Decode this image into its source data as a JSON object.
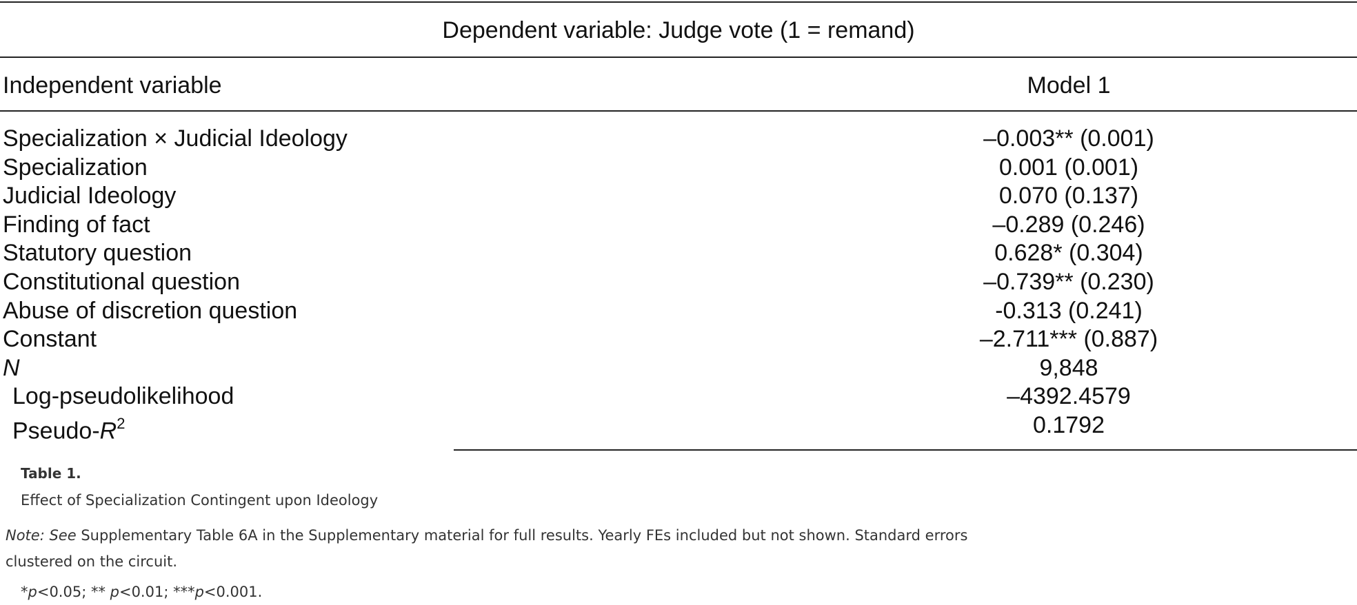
{
  "table": {
    "dependent_variable": "Dependent variable: Judge vote (1 = remand)",
    "header": {
      "left": "Independent variable",
      "right": "Model 1"
    },
    "rows": [
      {
        "variable": "Specialization × Judicial Ideology",
        "value": "–0.003** (0.001)"
      },
      {
        "variable": "Specialization",
        "value": "0.001 (0.001)"
      },
      {
        "variable": "Judicial Ideology",
        "value": "0.070 (0.137)"
      },
      {
        "variable": "Finding of fact",
        "value": "–0.289 (0.246)"
      },
      {
        "variable": "Statutory question",
        "value": "0.628* (0.304)"
      },
      {
        "variable": "Constitutional question",
        "value": "–0.739** (0.230)"
      },
      {
        "variable": "Abuse of discretion question",
        "value": "-0.313 (0.241)"
      },
      {
        "variable": "Constant",
        "value": "–2.711*** (0.887)"
      }
    ],
    "stats": {
      "n_label": "N",
      "n_value": "9,848",
      "loglik_label": "Log-pseudolikelihood",
      "loglik_value": "–4392.4579",
      "r2_label": "Pseudo-",
      "r2_symbol": "R",
      "r2_exponent": "2",
      "r2_value": "0.1792"
    }
  },
  "caption": {
    "label": "Table 1.",
    "title": "Effect of Specialization Contingent upon Ideology",
    "note_prefix": "Note: See",
    "note_text": " Supplementary Table 6A in the Supplementary material for full results. Yearly FEs included but not shown. Standard errors clustered on the circuit.",
    "sig_p1": "p",
    "sig_t1": "<0.05; ** ",
    "sig_p2": "p",
    "sig_t2": "<0.01; ***",
    "sig_p3": "p",
    "sig_t3": "<0.001.",
    "sig_lead": "*"
  }
}
